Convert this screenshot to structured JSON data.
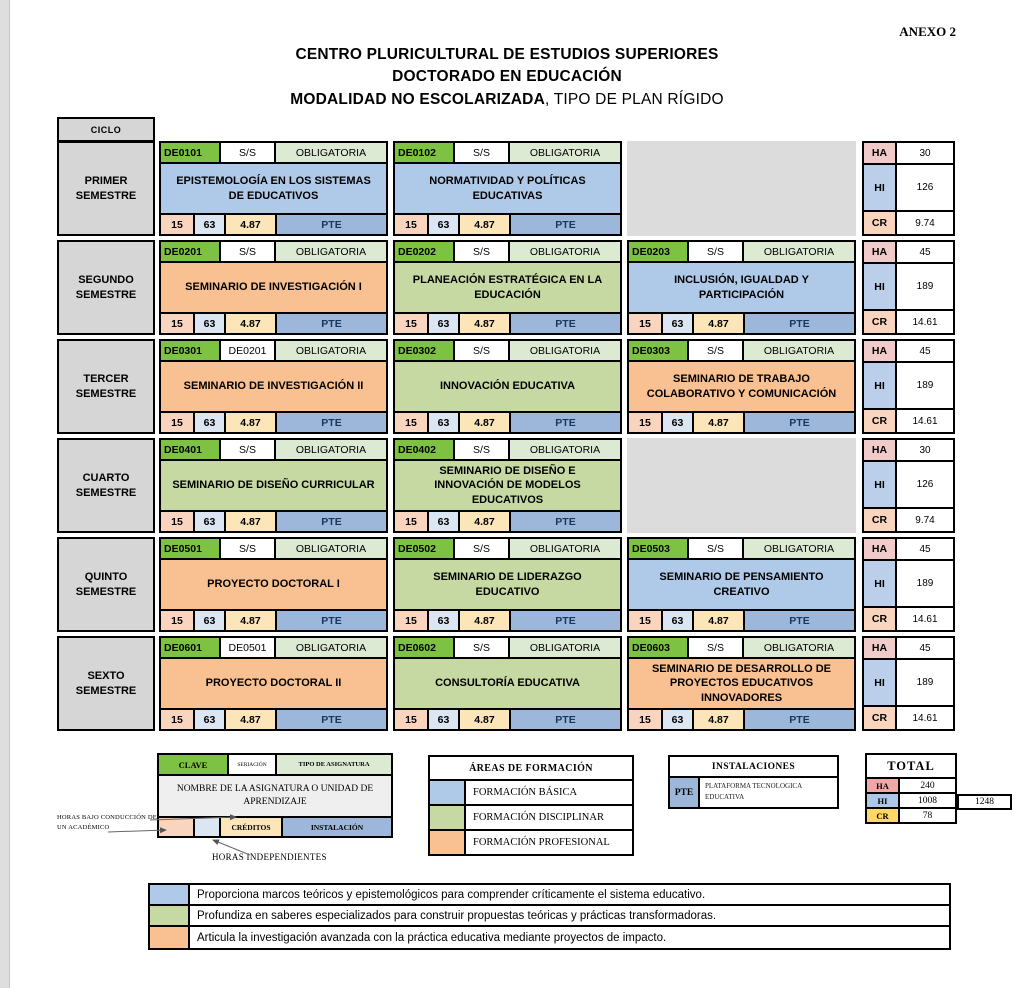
{
  "page": {
    "annex": "ANEXO 2",
    "title1": "CENTRO PLURICULTURAL DE ESTUDIOS SUPERIORES",
    "title2": "DOCTORADO EN EDUCACIÓN",
    "title3_bold": "MODALIDAD NO ESCOLARIZADA",
    "title3_rest": ", TIPO DE PLAN RÍGIDO"
  },
  "colors": {
    "areas": {
      "basica": "#afc9e8",
      "disciplinar": "#c6d9a2",
      "profesional": "#f9c091"
    },
    "clave_green": "#7dc242",
    "tipo_pale_green": "#ddead3",
    "instalacion_blue": "#9db7da",
    "gray_cell": "#d6d6d6"
  },
  "table": {
    "ciclo_header": "CICLO",
    "ha_label": "HA",
    "hi_label": "HI",
    "cr_label": "CR",
    "rows": [
      {
        "semester": "PRIMER SEMESTRE",
        "ha": "30",
        "hi": "126",
        "cr": "9.74",
        "courses": [
          {
            "clave": "DE0101",
            "seriacion": "S/S",
            "tipo": "OBLIGATORIA",
            "name": "EPISTEMOLOGÍA EN LOS SISTEMAS DE EDUCATIVOS",
            "area": "basica",
            "ha": "15",
            "hi": "63",
            "creditos": "4.87",
            "instalacion": "PTE"
          },
          {
            "clave": "DE0102",
            "seriacion": "S/S",
            "tipo": "OBLIGATORIA",
            "name": "NORMATIVIDAD Y POLÍTICAS EDUCATIVAS",
            "area": "basica",
            "ha": "15",
            "hi": "63",
            "creditos": "4.87",
            "instalacion": "PTE"
          },
          null
        ]
      },
      {
        "semester": "SEGUNDO SEMESTRE",
        "ha": "45",
        "hi": "189",
        "cr": "14.61",
        "courses": [
          {
            "clave": "DE0201",
            "seriacion": "S/S",
            "tipo": "OBLIGATORIA",
            "name": "SEMINARIO DE INVESTIGACIÓN I",
            "area": "profesional",
            "ha": "15",
            "hi": "63",
            "creditos": "4.87",
            "instalacion": "PTE"
          },
          {
            "clave": "DE0202",
            "seriacion": "S/S",
            "tipo": "OBLIGATORIA",
            "name": "PLANEACIÓN ESTRATÉGICA EN LA EDUCACIÓN",
            "area": "disciplinar",
            "ha": "15",
            "hi": "63",
            "creditos": "4.87",
            "instalacion": "PTE"
          },
          {
            "clave": "DE0203",
            "seriacion": "S/S",
            "tipo": "OBLIGATORIA",
            "name": "INCLUSIÓN, IGUALDAD Y PARTICIPACIÓN",
            "area": "basica",
            "ha": "15",
            "hi": "63",
            "creditos": "4.87",
            "instalacion": "PTE"
          }
        ]
      },
      {
        "semester": "TERCER SEMESTRE",
        "ha": "45",
        "hi": "189",
        "cr": "14.61",
        "courses": [
          {
            "clave": "DE0301",
            "seriacion": "DE0201",
            "tipo": "OBLIGATORIA",
            "name": "SEMINARIO DE INVESTIGACIÓN II",
            "area": "profesional",
            "ha": "15",
            "hi": "63",
            "creditos": "4.87",
            "instalacion": "PTE"
          },
          {
            "clave": "DE0302",
            "seriacion": "S/S",
            "tipo": "OBLIGATORIA",
            "name": "INNOVACIÓN EDUCATIVA",
            "area": "disciplinar",
            "ha": "15",
            "hi": "63",
            "creditos": "4.87",
            "instalacion": "PTE"
          },
          {
            "clave": "DE0303",
            "seriacion": "S/S",
            "tipo": "OBLIGATORIA",
            "name": "SEMINARIO DE TRABAJO COLABORATIVO Y COMUNICACIÓN",
            "area": "profesional",
            "ha": "15",
            "hi": "63",
            "creditos": "4.87",
            "instalacion": "PTE"
          }
        ]
      },
      {
        "semester": "CUARTO SEMESTRE",
        "ha": "30",
        "hi": "126",
        "cr": "9.74",
        "courses": [
          {
            "clave": "DE0401",
            "seriacion": "S/S",
            "tipo": "OBLIGATORIA",
            "name": "SEMINARIO DE DISEÑO CURRICULAR",
            "area": "disciplinar",
            "ha": "15",
            "hi": "63",
            "creditos": "4.87",
            "instalacion": "PTE"
          },
          {
            "clave": "DE0402",
            "seriacion": "S/S",
            "tipo": "OBLIGATORIA",
            "name": "SEMINARIO DE DISEÑO E INNOVACIÓN DE MODELOS EDUCATIVOS",
            "area": "disciplinar",
            "ha": "15",
            "hi": "63",
            "creditos": "4.87",
            "instalacion": "PTE"
          },
          null
        ]
      },
      {
        "semester": "QUINTO SEMESTRE",
        "ha": "45",
        "hi": "189",
        "cr": "14.61",
        "courses": [
          {
            "clave": "DE0501",
            "seriacion": "S/S",
            "tipo": "OBLIGATORIA",
            "name": "PROYECTO DOCTORAL I",
            "area": "profesional",
            "ha": "15",
            "hi": "63",
            "creditos": "4.87",
            "instalacion": "PTE"
          },
          {
            "clave": "DE0502",
            "seriacion": "S/S",
            "tipo": "OBLIGATORIA",
            "name": "SEMINARIO DE LIDERAZGO EDUCATIVO",
            "area": "disciplinar",
            "ha": "15",
            "hi": "63",
            "creditos": "4.87",
            "instalacion": "PTE"
          },
          {
            "clave": "DE0503",
            "seriacion": "S/S",
            "tipo": "OBLIGATORIA",
            "name": "SEMINARIO DE PENSAMIENTO CREATIVO",
            "area": "basica",
            "ha": "15",
            "hi": "63",
            "creditos": "4.87",
            "instalacion": "PTE"
          }
        ]
      },
      {
        "semester": "SEXTO SEMESTRE",
        "ha": "45",
        "hi": "189",
        "cr": "14.61",
        "courses": [
          {
            "clave": "DE0601",
            "seriacion": "DE0501",
            "tipo": "OBLIGATORIA",
            "name": "PROYECTO DOCTORAL II",
            "area": "profesional",
            "ha": "15",
            "hi": "63",
            "creditos": "4.87",
            "instalacion": "PTE"
          },
          {
            "clave": "DE0602",
            "seriacion": "S/S",
            "tipo": "OBLIGATORIA",
            "name": "CONSULTORÍA EDUCATIVA",
            "area": "disciplinar",
            "ha": "15",
            "hi": "63",
            "creditos": "4.87",
            "instalacion": "PTE"
          },
          {
            "clave": "DE0603",
            "seriacion": "S/S",
            "tipo": "OBLIGATORIA",
            "name": "SEMINARIO DE DESARROLLO DE PROYECTOS EDUCATIVOS INNOVADORES",
            "area": "profesional",
            "ha": "15",
            "hi": "63",
            "creditos": "4.87",
            "instalacion": "PTE"
          }
        ]
      }
    ]
  },
  "legend_card": {
    "clave": "CLAVE",
    "seriacion": "SERIACIÓN",
    "tipo": "TIPO DE ASIGNATURA",
    "nombre": "NOMBRE DE LA ASIGNATURA O UNIDAD DE APRENDIZAJE",
    "creditos": "CRÉDITOS",
    "instalacion": "INSTALACIÓN",
    "annotation_conduccion": "HORAS BAJO CONDUCCIÓN DE UN ACADÉMICO",
    "annotation_independientes": "HORAS INDEPENDIENTES"
  },
  "areas": {
    "title": "ÁREAS DE FORMACIÓN",
    "items": [
      {
        "label": "FORMACIÓN BÁSICA",
        "color": "#afc9e8"
      },
      {
        "label": "FORMACIÓN DISCIPLINAR",
        "color": "#c6d9a2"
      },
      {
        "label": "FORMACIÓN PROFESIONAL",
        "color": "#f9c091"
      }
    ]
  },
  "instalaciones": {
    "title": "INSTALACIONES",
    "code": "PTE",
    "label": "PLATAFORMA TECNOLOGICA EDUCATIVA"
  },
  "total": {
    "title": "TOTAL",
    "rows": [
      {
        "label": "HA",
        "value": "240",
        "color": "#f2a7a7"
      },
      {
        "label": "HI",
        "value": "1008",
        "color": "#aec6e8"
      },
      {
        "label": "CR",
        "value": "78",
        "color": "#ffd966"
      }
    ],
    "grand_total": "1248"
  },
  "descriptions": [
    {
      "color": "#afc9e8",
      "text": "Proporciona marcos teóricos y epistemológicos para comprender críticamente el sistema educativo."
    },
    {
      "color": "#c6d9a2",
      "text": "Profundiza en saberes especializados para construir propuestas teóricas y prácticas transformadoras."
    },
    {
      "color": "#f9c091",
      "text": "Articula la investigación avanzada con la práctica educativa mediante proyectos de impacto."
    }
  ]
}
